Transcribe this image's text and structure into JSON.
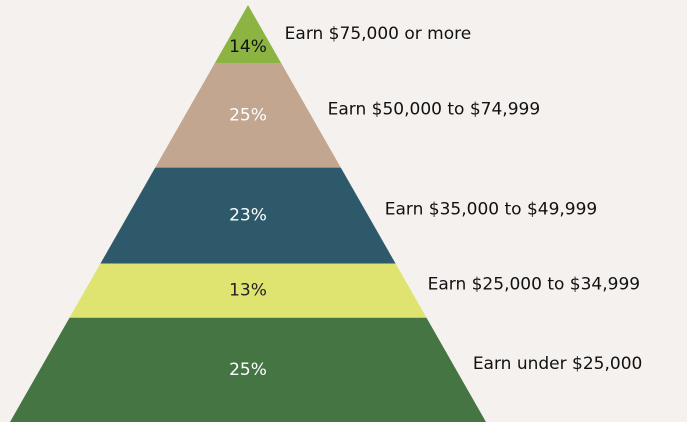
{
  "chart_data": {
    "type": "pyramid",
    "categories": [
      "Earn $75,000 or more",
      "Earn $50,000 to $74,999",
      "Earn $35,000 to $49,999",
      "Earn $25,000 to $34,999",
      "Earn under $25,000"
    ],
    "values": [
      14,
      25,
      23,
      13,
      25
    ],
    "value_labels": [
      "14%",
      "25%",
      "23%",
      "13%",
      "25%"
    ],
    "colors": [
      "#8cb443",
      "#c2a690",
      "#2e596a",
      "#dfe36f",
      "#467544"
    ],
    "label_colors": [
      "#111111",
      "#ffffff",
      "#ffffff",
      "#222222",
      "#ffffff"
    ]
  }
}
